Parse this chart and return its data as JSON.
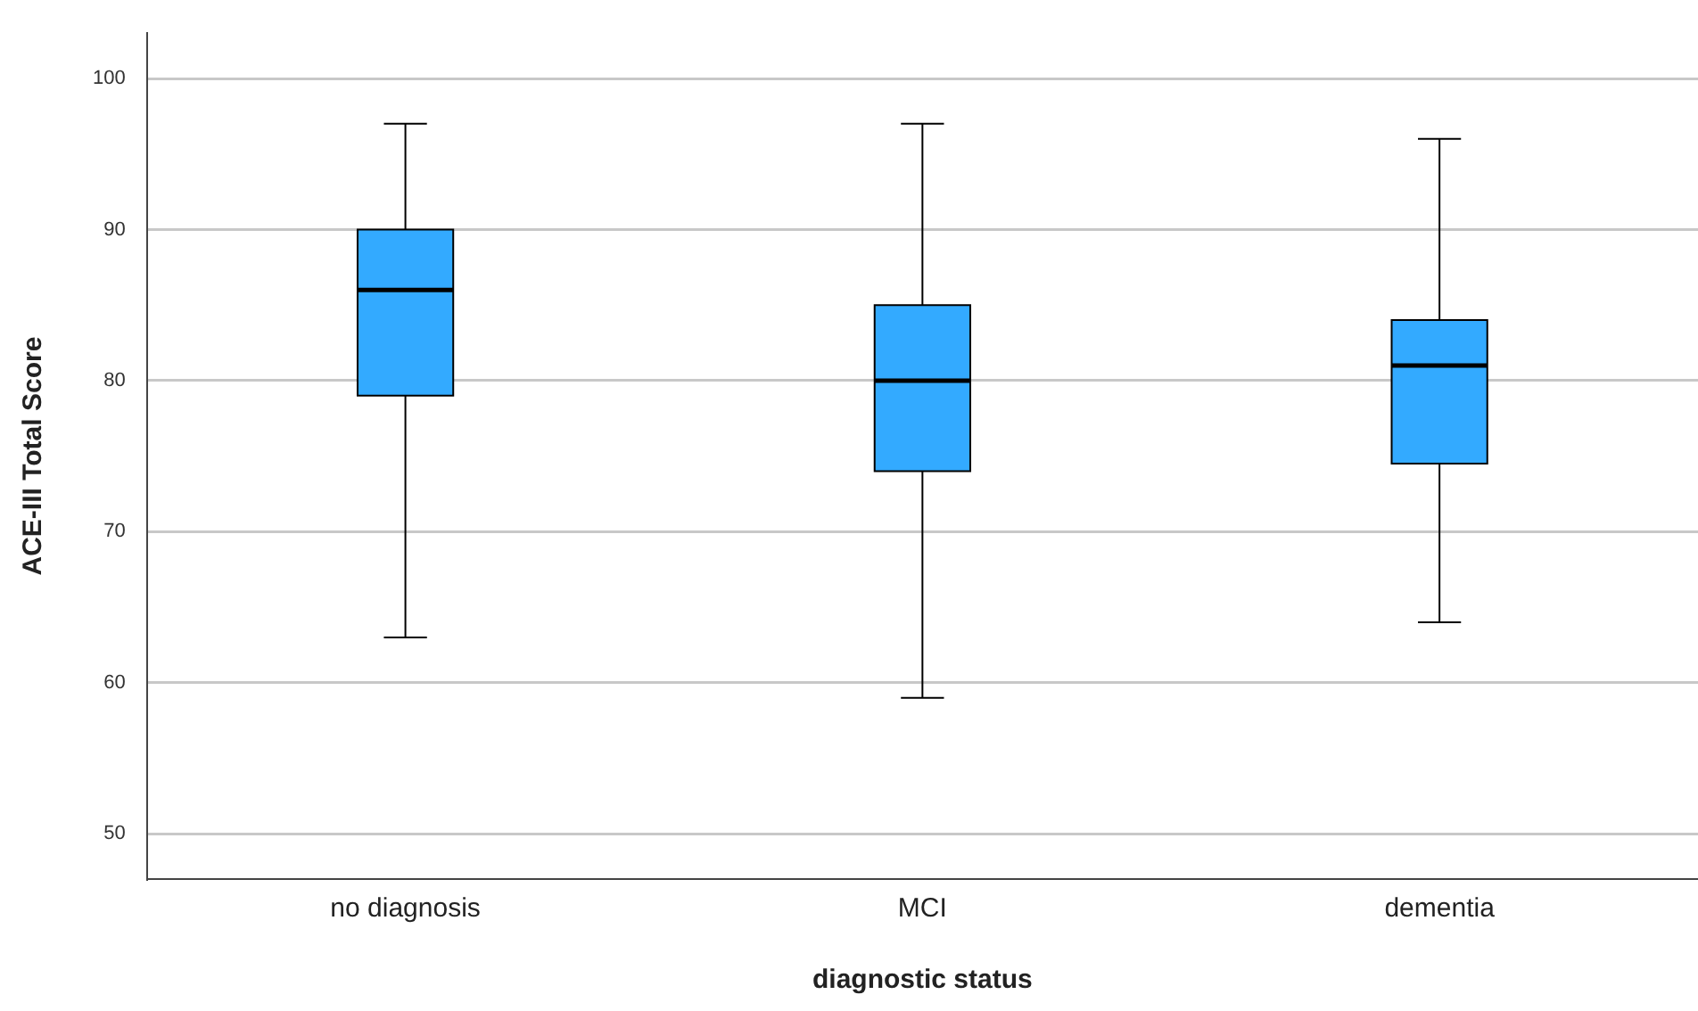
{
  "chart_data": {
    "type": "box",
    "xlabel": "diagnostic status",
    "ylabel": "ACE-III Total Score",
    "categories": [
      "no diagnosis",
      "MCI",
      "dementia"
    ],
    "boxes": [
      {
        "low": 63,
        "q1": 79,
        "median": 86,
        "q3": 90,
        "high": 97
      },
      {
        "low": 59,
        "q1": 74,
        "median": 80,
        "q3": 85,
        "high": 97
      },
      {
        "low": 64,
        "q1": 74.5,
        "median": 81,
        "q3": 84,
        "high": 96
      }
    ],
    "color": "#33aaff",
    "ylim": [
      47,
      103
    ],
    "yticks": [
      50,
      60,
      70,
      80,
      90,
      100
    ],
    "grid": "y",
    "legend": false
  }
}
